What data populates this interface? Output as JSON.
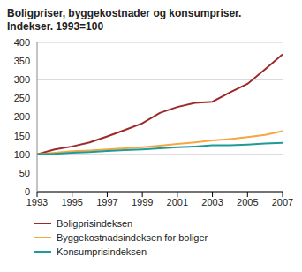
{
  "chart_data": {
    "type": "line",
    "title": "Boligpriser, byggekostnader og konsumpriser.",
    "subtitle": "Indekser. 1993=100",
    "x": [
      1993,
      1994,
      1995,
      1996,
      1997,
      1998,
      1999,
      2000,
      2001,
      2002,
      2003,
      2004,
      2005,
      2006,
      2007
    ],
    "xlim": [
      1993,
      2007
    ],
    "xticks": [
      1993,
      1995,
      1997,
      1999,
      2001,
      2003,
      2005,
      2007
    ],
    "ylim": [
      0,
      400
    ],
    "yticks": [
      0,
      50,
      100,
      150,
      200,
      250,
      300,
      350,
      400
    ],
    "grid": true,
    "series": [
      {
        "name": "Boligprisindeksen",
        "color": "#9c2a2a",
        "values": [
          100,
          113,
          121,
          132,
          148,
          165,
          183,
          211,
          227,
          238,
          241,
          266,
          289,
          328,
          368
        ]
      },
      {
        "name": "Byggekostnadsindeksen for boliger",
        "color": "#f5a742",
        "values": [
          100,
          104,
          108,
          110,
          113,
          116,
          119,
          123,
          128,
          132,
          137,
          141,
          146,
          152,
          162
        ]
      },
      {
        "name": "Konsumprisindeksen",
        "color": "#1f9a9a",
        "values": [
          100,
          101,
          104,
          106,
          109,
          111,
          113,
          116,
          119,
          121,
          124,
          124,
          126,
          129,
          131
        ]
      }
    ]
  }
}
